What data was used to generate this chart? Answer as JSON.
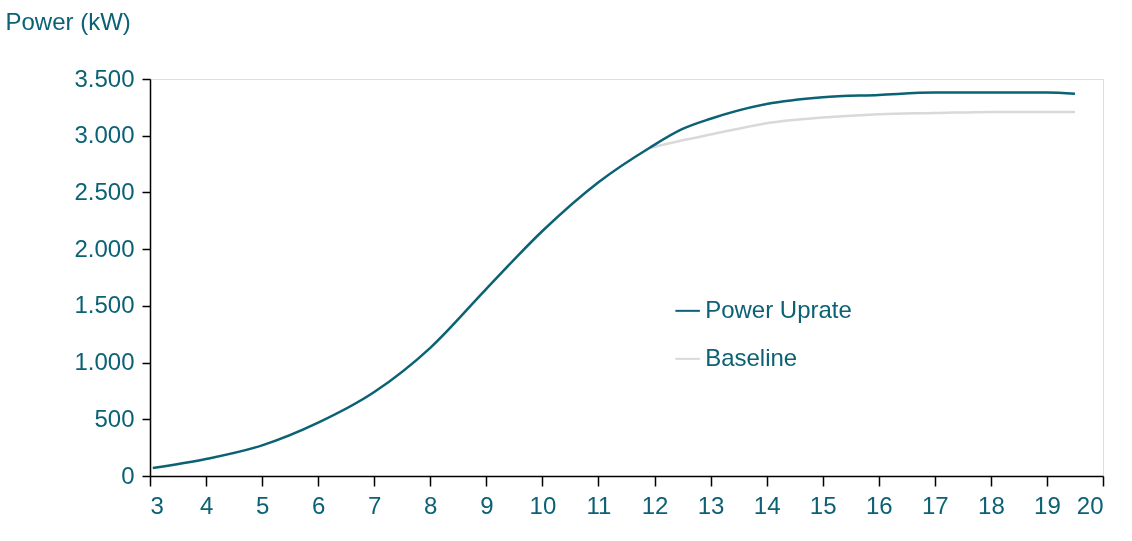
{
  "chart_data": {
    "type": "line",
    "ylabel": "Power (kW)",
    "xlim": [
      3,
      20
    ],
    "xticks": [
      3,
      4,
      5,
      6,
      7,
      8,
      9,
      10,
      11,
      12,
      13,
      14,
      15,
      16,
      17,
      18,
      19,
      20
    ],
    "ylim": [
      0,
      3500
    ],
    "yticks": [
      0,
      500,
      {
        "value": 1000,
        "label": "1.000"
      },
      {
        "value": 1500,
        "label": "1.500"
      },
      {
        "value": 2000,
        "label": "2.000"
      },
      {
        "value": 2500,
        "label": "2.500"
      },
      {
        "value": 3000,
        "label": "3.000"
      },
      {
        "value": 3500,
        "label": "3.500"
      }
    ],
    "grid": false,
    "legend": "right",
    "marker": "none",
    "line_style": "solid",
    "series": [
      {
        "name": "Baseline",
        "color": "#d9d9d9",
        "x": [
          11.9,
          12.5,
          13,
          14,
          15,
          16,
          17,
          18,
          19,
          19.5
        ],
        "values": [
          2890,
          2960,
          3010,
          3110,
          3160,
          3190,
          3200,
          3210,
          3210,
          3210
        ]
      },
      {
        "name": "Power Uprate",
        "color": "#0b6274",
        "x": [
          3.05,
          4,
          5,
          6,
          7,
          8,
          9,
          10,
          11,
          11.9,
          12.5,
          13,
          14,
          15,
          16,
          17,
          18,
          19,
          19.5
        ],
        "values": [
          70,
          150,
          270,
          470,
          740,
          1130,
          1650,
          2160,
          2590,
          2890,
          3060,
          3150,
          3280,
          3340,
          3360,
          3380,
          3380,
          3380,
          3370
        ]
      }
    ]
  }
}
